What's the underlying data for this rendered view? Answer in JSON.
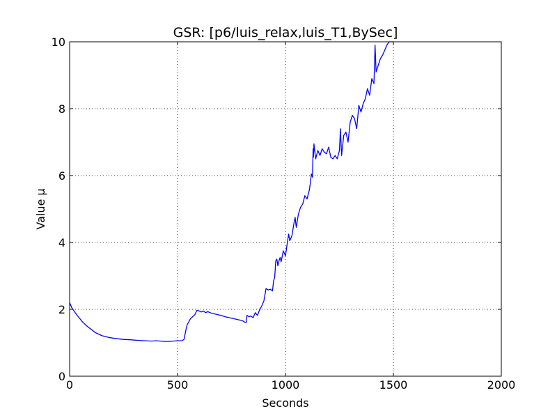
{
  "chart_data": {
    "type": "line",
    "title": "GSR: [p6/luis_relax,luis_T1,BySec]",
    "xlabel": "Seconds",
    "ylabel": "Value µ",
    "xlim": [
      0,
      2000
    ],
    "ylim": [
      0,
      10
    ],
    "xticks": [
      "0",
      "500",
      "1000",
      "1500",
      "2000"
    ],
    "yticks": [
      "0",
      "2",
      "4",
      "6",
      "8",
      "10"
    ],
    "grid": true,
    "series": [
      {
        "color": "#0000ff",
        "x": [
          0,
          10,
          20,
          40,
          60,
          80,
          100,
          120,
          150,
          180,
          200,
          220,
          250,
          280,
          300,
          320,
          350,
          380,
          400,
          420,
          440,
          460,
          480,
          500,
          520,
          530,
          540,
          545,
          550,
          560,
          570,
          580,
          590,
          600,
          610,
          620,
          630,
          640,
          660,
          680,
          700,
          720,
          740,
          760,
          780,
          800,
          810,
          818,
          822,
          830,
          840,
          850,
          860,
          870,
          880,
          890,
          900,
          910,
          920,
          930,
          940,
          945,
          950,
          955,
          960,
          965,
          970,
          975,
          980,
          990,
          1000,
          1010,
          1015,
          1020,
          1030,
          1040,
          1045,
          1050,
          1060,
          1070,
          1080,
          1090,
          1100,
          1110,
          1115,
          1120,
          1125,
          1128,
          1130,
          1132,
          1140,
          1150,
          1160,
          1170,
          1180,
          1190,
          1200,
          1210,
          1220,
          1230,
          1240,
          1250,
          1255,
          1260,
          1270,
          1280,
          1290,
          1300,
          1310,
          1320,
          1330,
          1340,
          1350,
          1360,
          1370,
          1380,
          1390,
          1400,
          1410,
          1415,
          1420,
          1430,
          1440,
          1450,
          1460,
          1470,
          1480,
          1490,
          1500
        ],
        "y": [
          2.2,
          2.05,
          1.95,
          1.78,
          1.62,
          1.5,
          1.4,
          1.3,
          1.21,
          1.16,
          1.14,
          1.12,
          1.1,
          1.09,
          1.08,
          1.07,
          1.06,
          1.05,
          1.06,
          1.05,
          1.04,
          1.04,
          1.05,
          1.06,
          1.06,
          1.1,
          1.42,
          1.55,
          1.6,
          1.72,
          1.78,
          1.84,
          1.97,
          1.95,
          1.92,
          1.95,
          1.9,
          1.93,
          1.88,
          1.85,
          1.82,
          1.78,
          1.75,
          1.72,
          1.69,
          1.66,
          1.62,
          1.6,
          1.82,
          1.78,
          1.8,
          1.75,
          1.9,
          1.82,
          1.98,
          2.1,
          2.25,
          2.62,
          2.58,
          2.6,
          2.55,
          2.85,
          2.95,
          3.45,
          3.5,
          3.3,
          3.45,
          3.55,
          3.42,
          3.75,
          3.6,
          4.05,
          4.25,
          4.05,
          4.2,
          4.6,
          4.75,
          4.45,
          4.85,
          5.05,
          5.15,
          5.4,
          5.3,
          5.55,
          5.75,
          6.05,
          5.95,
          6.8,
          6.55,
          6.95,
          6.5,
          6.75,
          6.6,
          6.8,
          6.7,
          6.65,
          6.85,
          6.55,
          6.5,
          6.6,
          6.5,
          6.75,
          7.4,
          6.6,
          7.2,
          7.3,
          7.0,
          7.6,
          7.8,
          7.7,
          7.4,
          8.1,
          7.9,
          8.15,
          8.3,
          8.6,
          8.4,
          8.9,
          8.75,
          9.9,
          9.1,
          9.3,
          9.5,
          9.6,
          9.75,
          9.9,
          10.0,
          10.0,
          10.0
        ]
      }
    ]
  }
}
